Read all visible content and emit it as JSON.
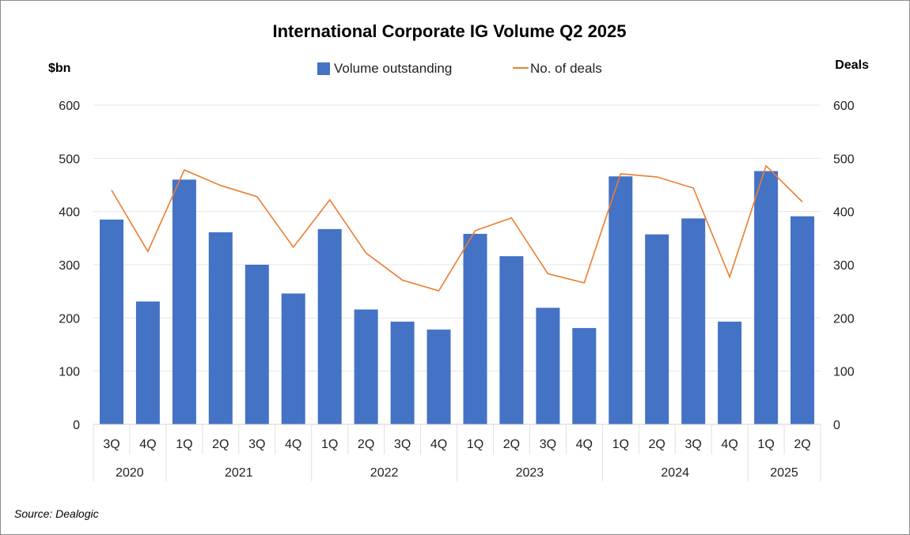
{
  "chart_data": {
    "type": "bar",
    "title": "International Corporate IG Volume Q2 2025",
    "y_left_label": "$bn",
    "y_right_label": "Deals",
    "y_left_lim": [
      0,
      600
    ],
    "y_right_lim": [
      0,
      600
    ],
    "y_ticks": [
      "0",
      "100",
      "200",
      "300",
      "400",
      "500",
      "600"
    ],
    "grid": true,
    "legend_position": "top-center",
    "categories": [
      "3Q",
      "4Q",
      "1Q",
      "2Q",
      "3Q",
      "4Q",
      "1Q",
      "2Q",
      "3Q",
      "4Q",
      "1Q",
      "2Q",
      "3Q",
      "4Q",
      "1Q",
      "2Q",
      "3Q",
      "4Q",
      "1Q",
      "2Q"
    ],
    "year_groups": [
      {
        "year": "2020",
        "count": 2
      },
      {
        "year": "2021",
        "count": 4
      },
      {
        "year": "2022",
        "count": 4
      },
      {
        "year": "2023",
        "count": 4
      },
      {
        "year": "2024",
        "count": 4
      },
      {
        "year": "2025",
        "count": 2
      }
    ],
    "series": [
      {
        "name": "Volume outstanding",
        "type": "bar",
        "axis": "left",
        "color": "#4472C4",
        "values": [
          385,
          231,
          460,
          361,
          300,
          246,
          367,
          216,
          193,
          178,
          358,
          316,
          219,
          181,
          466,
          357,
          387,
          193,
          476,
          391
        ]
      },
      {
        "name": "No. of deals",
        "type": "line",
        "axis": "right",
        "color": "#ED7D31",
        "values": [
          440,
          325,
          478,
          449,
          428,
          333,
          422,
          322,
          271,
          251,
          364,
          388,
          283,
          266,
          471,
          465,
          444,
          277,
          486,
          418
        ]
      }
    ]
  },
  "source": "Source: Dealogic"
}
